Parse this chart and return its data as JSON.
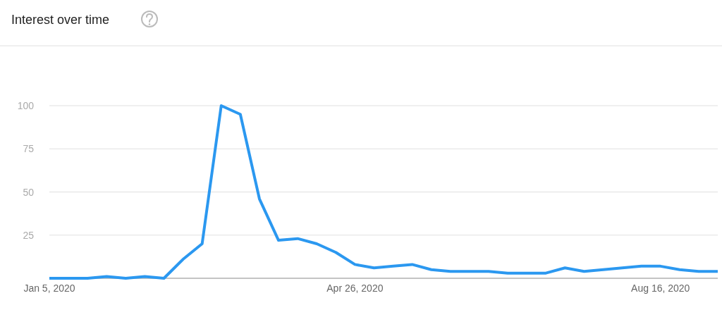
{
  "chart_data": {
    "type": "line",
    "title": "Interest over time",
    "x": [
      "2020-01-05",
      "2020-01-12",
      "2020-01-19",
      "2020-01-26",
      "2020-02-02",
      "2020-02-09",
      "2020-02-16",
      "2020-02-23",
      "2020-03-01",
      "2020-03-08",
      "2020-03-15",
      "2020-03-22",
      "2020-03-29",
      "2020-04-05",
      "2020-04-12",
      "2020-04-19",
      "2020-04-26",
      "2020-05-03",
      "2020-05-10",
      "2020-05-17",
      "2020-05-24",
      "2020-05-31",
      "2020-06-07",
      "2020-06-14",
      "2020-06-21",
      "2020-06-28",
      "2020-07-05",
      "2020-07-12",
      "2020-07-19",
      "2020-07-26",
      "2020-08-02",
      "2020-08-09",
      "2020-08-16",
      "2020-08-23",
      "2020-08-30",
      "2020-09-06"
    ],
    "series": [
      {
        "color": "#2b98f0",
        "values": [
          0,
          0,
          0,
          1,
          0,
          1,
          0,
          11,
          20,
          100,
          95,
          46,
          22,
          23,
          20,
          15,
          8,
          6,
          7,
          8,
          5,
          4,
          4,
          4,
          3,
          3,
          3,
          6,
          4,
          5,
          6,
          7,
          7,
          5,
          4,
          4
        ]
      }
    ],
    "xlim": [
      "2020-01-05",
      "2020-09-06"
    ],
    "xticks": [
      {
        "value": "2020-01-05",
        "label": "Jan 5, 2020"
      },
      {
        "value": "2020-04-26",
        "label": "Apr 26, 2020"
      },
      {
        "value": "2020-08-16",
        "label": "Aug 16, 2020"
      }
    ],
    "ylim": [
      0,
      100
    ],
    "yticks": [
      {
        "value": 0,
        "label": null
      },
      25,
      50,
      75,
      100
    ],
    "grid": "y",
    "marker": "none",
    "line_style": "solid"
  }
}
